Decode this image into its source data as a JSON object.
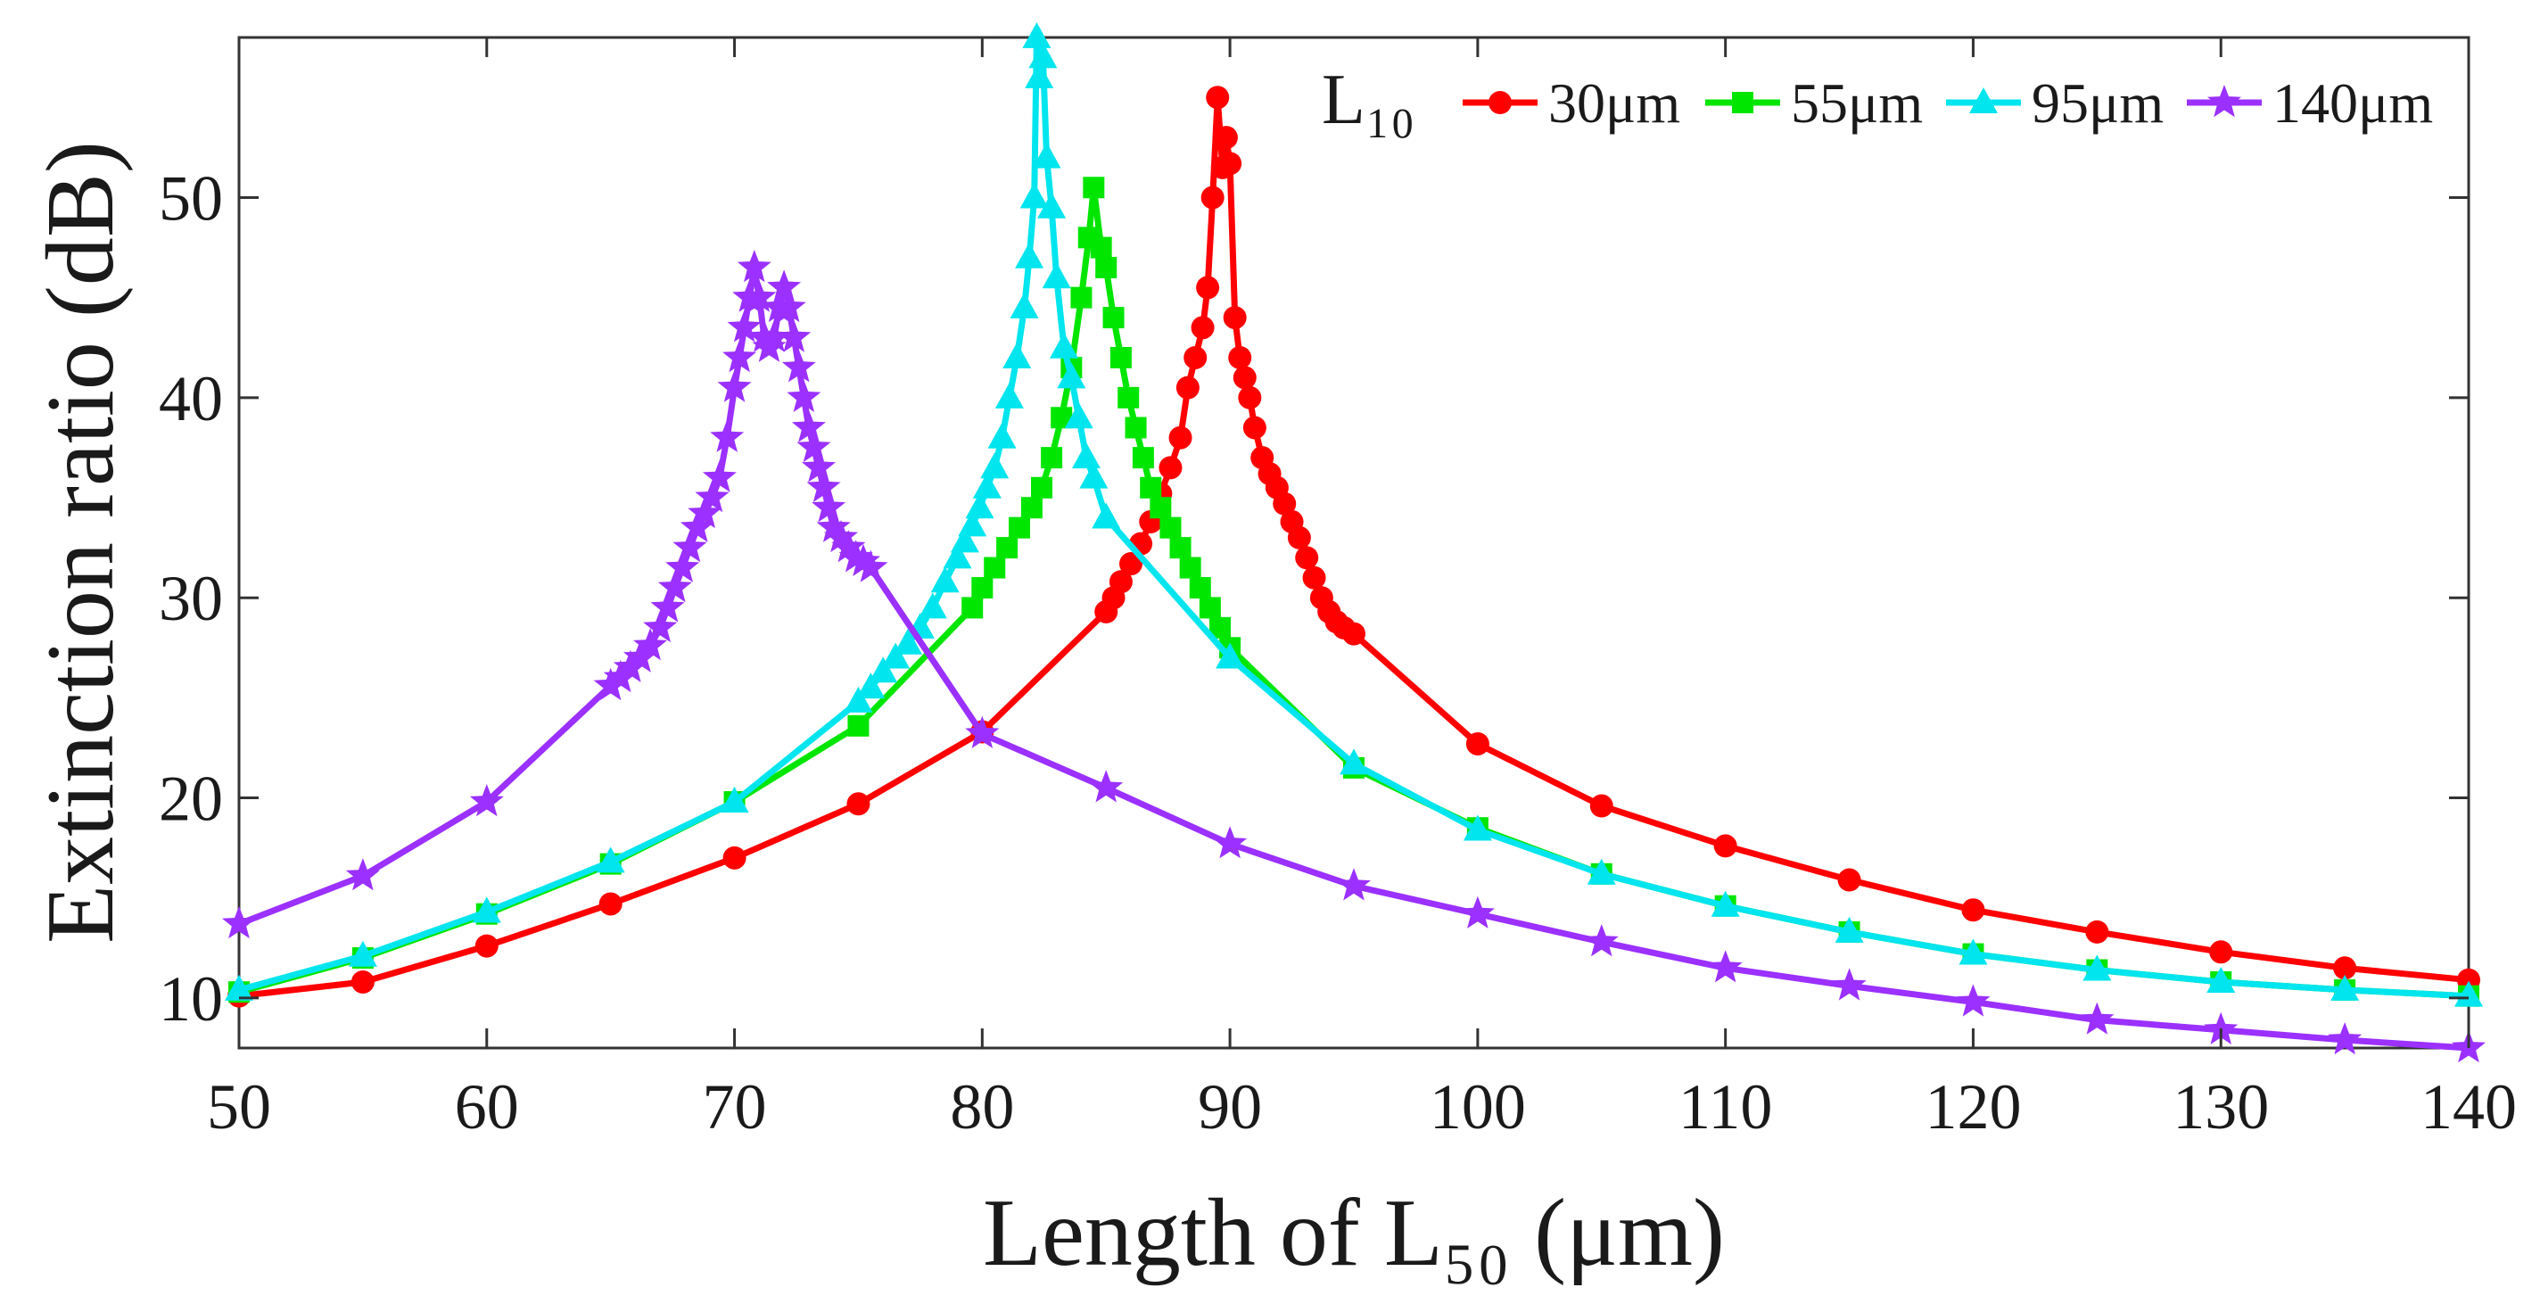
{
  "chart_data": {
    "type": "line",
    "title": "",
    "xlabel": "Length of L₅₀ (μm)",
    "ylabel": "Extinction ratio (dB)",
    "xlim": [
      50,
      140
    ],
    "ylim": [
      7.5,
      58
    ],
    "xticks": [
      "50",
      "60",
      "70",
      "80",
      "90",
      "100",
      "110",
      "120",
      "130",
      "140"
    ],
    "yticks": [
      "10",
      "20",
      "30",
      "40",
      "50"
    ],
    "grid": false,
    "legend": {
      "title": "L₁₀",
      "placement": "top-right"
    },
    "series": [
      {
        "name": "30μm",
        "color": "#ff0000",
        "marker": "circle",
        "x": [
          50,
          55,
          60,
          65,
          70,
          75,
          80,
          85,
          85.3,
          85.6,
          86,
          86.4,
          86.8,
          87.2,
          87.6,
          88,
          88.3,
          88.6,
          88.9,
          89.1,
          89.3,
          89.5,
          89.7,
          89.85,
          90,
          90.2,
          90.4,
          90.6,
          90.8,
          91,
          91.3,
          91.6,
          91.9,
          92.2,
          92.5,
          92.8,
          93.1,
          93.4,
          93.7,
          94,
          94.3,
          94.6,
          95,
          100,
          105,
          110,
          115,
          120,
          125,
          130,
          135,
          140
        ],
        "y": [
          10.1,
          10.8,
          12.6,
          14.7,
          17.0,
          19.7,
          23.3,
          29.3,
          30.0,
          30.8,
          31.7,
          32.7,
          33.8,
          35.2,
          36.5,
          38.0,
          40.5,
          42.0,
          43.5,
          45.5,
          50.0,
          55.0,
          51.5,
          53.0,
          51.7,
          44.0,
          42.0,
          41.0,
          40.0,
          38.5,
          37.0,
          36.2,
          35.5,
          34.7,
          33.8,
          33.0,
          32.0,
          31.0,
          30.0,
          29.3,
          28.8,
          28.5,
          28.2,
          22.7,
          19.6,
          17.6,
          15.9,
          14.4,
          13.3,
          12.3,
          11.5,
          10.9
        ]
      },
      {
        "name": "55μm",
        "color": "#00e600",
        "marker": "square",
        "x": [
          50,
          55,
          60,
          65,
          70,
          75,
          79.6,
          80,
          80.5,
          81,
          81.5,
          82,
          82.4,
          82.8,
          83.2,
          83.6,
          84,
          84.3,
          84.5,
          84.8,
          85,
          85.3,
          85.6,
          85.9,
          86.2,
          86.5,
          86.8,
          87.2,
          87.6,
          88,
          88.4,
          88.8,
          89.2,
          89.6,
          90,
          95,
          100,
          105,
          110,
          115,
          120,
          125,
          130,
          135,
          140
        ],
        "y": [
          10.3,
          12.0,
          14.2,
          16.7,
          19.8,
          23.6,
          29.5,
          30.5,
          31.5,
          32.5,
          33.5,
          34.5,
          35.5,
          37.0,
          39.0,
          41.5,
          45.0,
          48.0,
          50.5,
          47.5,
          46.5,
          44.0,
          42.0,
          40.0,
          38.5,
          37.0,
          35.5,
          34.5,
          33.5,
          32.5,
          31.5,
          30.5,
          29.5,
          28.5,
          27.5,
          21.5,
          18.5,
          16.2,
          14.6,
          13.3,
          12.2,
          11.4,
          10.8,
          10.4,
          10.1
        ]
      },
      {
        "name": "95μm",
        "color": "#00e5ee",
        "marker": "triangle",
        "x": [
          50,
          55,
          60,
          65,
          70,
          75,
          75.5,
          76,
          76.5,
          77,
          77.5,
          78,
          78.5,
          79,
          79.3,
          79.6,
          79.9,
          80.2,
          80.5,
          80.8,
          81.1,
          81.4,
          81.7,
          81.9,
          82.1,
          82.2,
          82.3,
          82.45,
          82.6,
          82.8,
          83,
          83.3,
          83.6,
          83.9,
          84.2,
          84.5,
          85,
          90,
          95,
          100,
          105,
          110,
          115,
          120,
          125,
          130,
          135,
          140
        ],
        "y": [
          10.4,
          12.1,
          14.3,
          16.8,
          19.8,
          24.8,
          25.5,
          26.3,
          27.0,
          27.7,
          28.5,
          29.5,
          30.8,
          32.0,
          32.8,
          33.6,
          34.5,
          35.5,
          36.5,
          38.0,
          40.0,
          42.0,
          44.5,
          47.0,
          50.0,
          58.0,
          56.0,
          57.0,
          52.0,
          49.5,
          46.0,
          42.5,
          41.0,
          39.0,
          37.0,
          36.0,
          34.0,
          27.0,
          21.7,
          18.4,
          16.2,
          14.6,
          13.3,
          12.2,
          11.4,
          10.8,
          10.4,
          10.1
        ]
      },
      {
        "name": "140μm",
        "color": "#9b30ff",
        "marker": "star",
        "x": [
          50,
          55,
          60,
          65,
          65.4,
          65.8,
          66.2,
          66.6,
          67,
          67.3,
          67.6,
          67.9,
          68.2,
          68.5,
          68.8,
          69.1,
          69.4,
          69.7,
          70,
          70.2,
          70.4,
          70.6,
          70.8,
          71,
          71.2,
          71.4,
          71.6,
          71.8,
          72,
          72.2,
          72.4,
          72.6,
          72.8,
          73,
          73.2,
          73.4,
          73.6,
          73.8,
          74,
          74.3,
          74.6,
          74.9,
          75.2,
          75.5,
          80,
          85,
          90,
          95,
          100,
          105,
          110,
          115,
          120,
          125,
          130,
          135,
          140
        ],
        "y": [
          13.7,
          16.1,
          19.8,
          25.6,
          26.0,
          26.5,
          27.0,
          27.6,
          28.5,
          29.5,
          30.5,
          31.5,
          32.5,
          33.5,
          34.2,
          35.0,
          36.0,
          38.0,
          40.5,
          42.0,
          43.5,
          45.0,
          46.5,
          45.0,
          43.0,
          42.5,
          43.0,
          44.5,
          45.5,
          44.5,
          43.0,
          41.5,
          40.0,
          38.5,
          37.5,
          36.5,
          35.5,
          34.5,
          33.5,
          33.0,
          32.5,
          32.0,
          31.8,
          31.5,
          23.2,
          20.5,
          17.7,
          15.6,
          14.2,
          12.8,
          11.5,
          10.6,
          9.8,
          8.9,
          8.4,
          7.9,
          7.5
        ]
      }
    ]
  }
}
